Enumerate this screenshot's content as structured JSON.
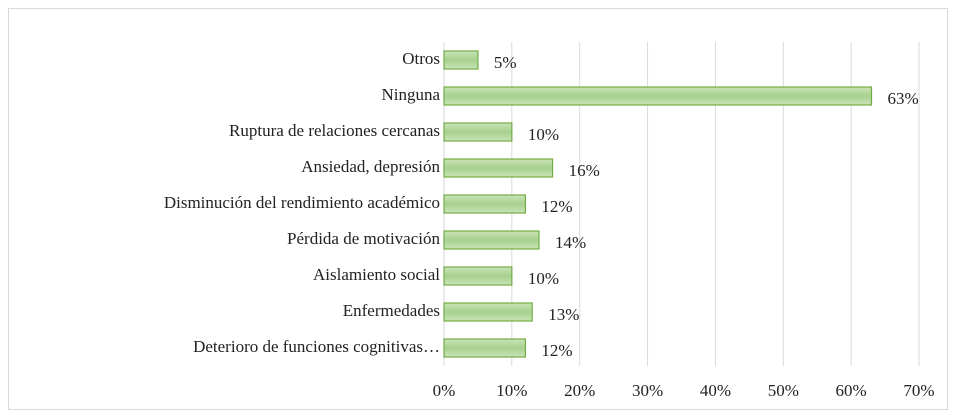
{
  "chart_data": {
    "type": "bar",
    "orientation": "horizontal",
    "categories": [
      "Otros",
      "Ninguna",
      "Ruptura de relaciones cercanas",
      "Ansiedad, depresión",
      "Disminución del rendimiento académico",
      "Pérdida de motivación",
      "Aislamiento social",
      "Enfermedades",
      "Deterioro de funciones cognitivas…"
    ],
    "values": [
      5,
      63,
      10,
      16,
      12,
      14,
      10,
      13,
      12
    ],
    "value_labels": [
      "5%",
      "63%",
      "10%",
      "16%",
      "12%",
      "14%",
      "10%",
      "13%",
      "12%"
    ],
    "color": "#a9d18e",
    "edge_color": "#70ad47",
    "xlim": [
      0,
      70
    ],
    "xticks": [
      {
        "value": 0,
        "label": "0%"
      },
      {
        "value": 10,
        "label": "10%"
      },
      {
        "value": 20,
        "label": "20%"
      },
      {
        "value": 30,
        "label": "30%"
      },
      {
        "value": 40,
        "label": "40%"
      },
      {
        "value": 50,
        "label": "50%"
      },
      {
        "value": 60,
        "label": "60%"
      },
      {
        "value": 70,
        "label": "70%"
      }
    ],
    "grid": true
  }
}
